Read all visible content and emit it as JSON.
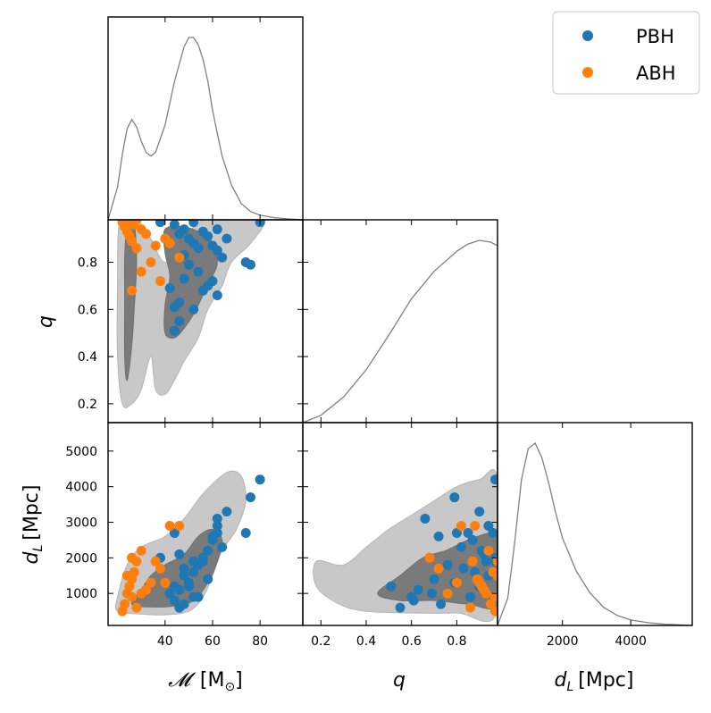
{
  "chart_data": {
    "type": "scatter",
    "kind": "corner-plot",
    "parameters": [
      "chirp_mass",
      "q",
      "d_L"
    ],
    "axis_labels": {
      "chirp_mass": {
        "symbol": "𝓜",
        "unit": "[M",
        "unit_sub": "⊙",
        "unit_close": "]"
      },
      "q": {
        "symbol": "q"
      },
      "d_L": {
        "symbol": "d",
        "sub": "L",
        "unit": "[Mpc]"
      }
    },
    "ranges": {
      "chirp_mass": [
        16,
        98
      ],
      "q": [
        0.12,
        0.98
      ],
      "d_L": [
        100,
        5800
      ]
    },
    "ticks": {
      "chirp_mass": [
        "40",
        "60",
        "80"
      ],
      "q": [
        "0.2",
        "0.4",
        "0.6",
        "0.8"
      ],
      "d_L": [
        "1000",
        "2000",
        "3000",
        "4000",
        "5000"
      ],
      "d_L_diag": [
        "2000",
        "4000"
      ]
    },
    "legend": {
      "placement": "top-right",
      "entries": [
        {
          "label": "PBH",
          "color": "#1f77b4"
        },
        {
          "label": "ABH",
          "color": "#ff7f0e"
        }
      ]
    },
    "colors": {
      "kde_line": "#808080",
      "contour_inner": "#7a7a7a",
      "contour_outer": "#c8c8c8"
    },
    "marginals": {
      "chirp_mass": {
        "x": [
          16,
          20,
          22,
          24,
          26,
          28,
          30,
          32,
          34,
          36,
          40,
          44,
          48,
          50,
          52,
          54,
          56,
          58,
          60,
          64,
          68,
          72,
          76,
          80,
          86,
          92,
          98
        ],
        "y": [
          0.0,
          0.18,
          0.36,
          0.5,
          0.55,
          0.51,
          0.43,
          0.37,
          0.35,
          0.37,
          0.52,
          0.76,
          0.95,
          1.0,
          1.0,
          0.96,
          0.88,
          0.76,
          0.6,
          0.35,
          0.19,
          0.09,
          0.045,
          0.025,
          0.012,
          0.005,
          0.0
        ]
      },
      "q": {
        "x": [
          0.12,
          0.2,
          0.3,
          0.4,
          0.5,
          0.6,
          0.7,
          0.8,
          0.85,
          0.9,
          0.95,
          0.98
        ],
        "y": [
          0.0,
          0.04,
          0.14,
          0.29,
          0.48,
          0.68,
          0.83,
          0.94,
          0.98,
          1.0,
          0.99,
          0.97
        ]
      },
      "d_L": {
        "x": [
          100,
          400,
          600,
          800,
          1000,
          1200,
          1400,
          1600,
          1800,
          2000,
          2400,
          2800,
          3200,
          3600,
          4000,
          4500,
          5000,
          5800
        ],
        "y": [
          0.0,
          0.15,
          0.45,
          0.8,
          0.97,
          1.0,
          0.92,
          0.78,
          0.62,
          0.48,
          0.3,
          0.18,
          0.1,
          0.055,
          0.03,
          0.015,
          0.007,
          0.0
        ]
      }
    },
    "contours": {
      "q_vs_chirp_mass": {
        "outer": [
          [
            [
              21,
              0.98
            ],
            [
              28,
              0.98
            ],
            [
              34,
              0.9
            ],
            [
              40,
              0.8
            ],
            [
              48,
              0.9
            ],
            [
              56,
              0.98
            ],
            [
              70,
              0.98
            ],
            [
              82,
              0.98
            ],
            [
              76,
              0.88
            ],
            [
              68,
              0.8
            ],
            [
              64,
              0.7
            ],
            [
              58,
              0.6
            ],
            [
              54,
              0.48
            ],
            [
              48,
              0.38
            ],
            [
              44,
              0.3
            ],
            [
              40,
              0.24
            ],
            [
              36,
              0.26
            ],
            [
              34,
              0.4
            ],
            [
              30,
              0.26
            ],
            [
              26,
              0.2
            ],
            [
              22,
              0.2
            ],
            [
              20,
              0.4
            ],
            [
              20,
              0.7
            ]
          ]
        ],
        "inner": [
          [
            [
              24,
              0.95
            ],
            [
              27,
              0.96
            ],
            [
              28,
              0.8
            ],
            [
              27,
              0.6
            ],
            [
              26,
              0.45
            ],
            [
              24,
              0.3
            ],
            [
              23,
              0.4
            ],
            [
              23,
              0.65
            ],
            [
              23,
              0.82
            ]
          ],
          [
            [
              40,
              0.94
            ],
            [
              48,
              0.95
            ],
            [
              56,
              0.92
            ],
            [
              60,
              0.88
            ],
            [
              62,
              0.8
            ],
            [
              60,
              0.74
            ],
            [
              56,
              0.66
            ],
            [
              52,
              0.58
            ],
            [
              48,
              0.52
            ],
            [
              44,
              0.48
            ],
            [
              40,
              0.5
            ],
            [
              40,
              0.62
            ],
            [
              42,
              0.74
            ],
            [
              40,
              0.84
            ]
          ]
        ]
      },
      "d_L_vs_chirp_mass": {
        "outer": [
          [
            [
              20,
              500
            ],
            [
              20,
              900
            ],
            [
              24,
              1800
            ],
            [
              30,
              2300
            ],
            [
              40,
              2600
            ],
            [
              48,
              3100
            ],
            [
              56,
              3800
            ],
            [
              66,
              4400
            ],
            [
              72,
              4300
            ],
            [
              74,
              3600
            ],
            [
              70,
              2800
            ],
            [
              64,
              2200
            ],
            [
              60,
              1500
            ],
            [
              56,
              900
            ],
            [
              50,
              500
            ],
            [
              40,
              400
            ],
            [
              30,
              420
            ]
          ]
        ],
        "inner": [
          [
            [
              26,
              700
            ],
            [
              30,
              1100
            ],
            [
              34,
              1500
            ],
            [
              40,
              1800
            ],
            [
              48,
              2100
            ],
            [
              54,
              2600
            ],
            [
              60,
              2800
            ],
            [
              64,
              2500
            ],
            [
              62,
              1900
            ],
            [
              58,
              1300
            ],
            [
              52,
              800
            ],
            [
              44,
              650
            ],
            [
              34,
              620
            ]
          ]
        ]
      },
      "d_L_vs_q": {
        "outer": [
          [
            [
              0.18,
              1900
            ],
            [
              0.3,
              1800
            ],
            [
              0.4,
              2300
            ],
            [
              0.5,
              2800
            ],
            [
              0.6,
              3200
            ],
            [
              0.7,
              3600
            ],
            [
              0.8,
              4000
            ],
            [
              0.9,
              4200
            ],
            [
              0.98,
              4200
            ],
            [
              0.98,
              500
            ],
            [
              0.8,
              450
            ],
            [
              0.6,
              450
            ],
            [
              0.4,
              500
            ],
            [
              0.28,
              700
            ],
            [
              0.18,
              1200
            ]
          ]
        ],
        "inner": [
          [
            [
              0.45,
              1000
            ],
            [
              0.55,
              1500
            ],
            [
              0.65,
              2000
            ],
            [
              0.75,
              2200
            ],
            [
              0.85,
              2500
            ],
            [
              0.95,
              2700
            ],
            [
              0.98,
              2500
            ],
            [
              0.98,
              700
            ],
            [
              0.85,
              700
            ],
            [
              0.7,
              800
            ],
            [
              0.55,
              800
            ]
          ]
        ]
      }
    },
    "samples": {
      "PBH": [
        {
          "M": 38,
          "q": 0.97,
          "d": 2000
        },
        {
          "M": 44,
          "q": 0.96,
          "d": 2700
        },
        {
          "M": 46,
          "q": 0.92,
          "d": 2100
        },
        {
          "M": 48,
          "q": 0.94,
          "d": 1500
        },
        {
          "M": 50,
          "q": 0.9,
          "d": 1200
        },
        {
          "M": 52,
          "q": 0.88,
          "d": 1600
        },
        {
          "M": 54,
          "q": 0.86,
          "d": 900
        },
        {
          "M": 56,
          "q": 0.93,
          "d": 1900
        },
        {
          "M": 58,
          "q": 0.91,
          "d": 2200
        },
        {
          "M": 60,
          "q": 0.87,
          "d": 2500
        },
        {
          "M": 62,
          "q": 0.85,
          "d": 2700
        },
        {
          "M": 64,
          "q": 0.82,
          "d": 2300
        },
        {
          "M": 66,
          "q": 0.9,
          "d": 3300
        },
        {
          "M": 80,
          "q": 0.97,
          "d": 4200
        },
        {
          "M": 76,
          "q": 0.79,
          "d": 3700
        },
        {
          "M": 74,
          "q": 0.8,
          "d": 2700
        },
        {
          "M": 42,
          "q": 0.69,
          "d": 1000
        },
        {
          "M": 44,
          "q": 0.61,
          "d": 800
        },
        {
          "M": 46,
          "q": 0.63,
          "d": 1100
        },
        {
          "M": 48,
          "q": 0.73,
          "d": 700
        },
        {
          "M": 50,
          "q": 0.79,
          "d": 1300
        },
        {
          "M": 52,
          "q": 0.6,
          "d": 900
        },
        {
          "M": 54,
          "q": 0.76,
          "d": 1800
        },
        {
          "M": 56,
          "q": 0.68,
          "d": 2000
        },
        {
          "M": 58,
          "q": 0.7,
          "d": 1400
        },
        {
          "M": 60,
          "q": 0.72,
          "d": 2600
        },
        {
          "M": 62,
          "q": 0.66,
          "d": 3100
        },
        {
          "M": 44,
          "q": 0.51,
          "d": 1200
        },
        {
          "M": 62,
          "q": 0.94,
          "d": 2900
        },
        {
          "M": 48,
          "q": 0.83,
          "d": 1700
        },
        {
          "M": 46,
          "q": 0.55,
          "d": 600
        },
        {
          "M": 52,
          "q": 0.97,
          "d": 1900
        }
      ],
      "ABH": [
        {
          "M": 22,
          "q": 0.97,
          "d": 500
        },
        {
          "M": 23,
          "q": 0.95,
          "d": 700
        },
        {
          "M": 24,
          "q": 0.93,
          "d": 1000
        },
        {
          "M": 25,
          "q": 0.91,
          "d": 1200
        },
        {
          "M": 26,
          "q": 0.89,
          "d": 1400
        },
        {
          "M": 27,
          "q": 0.96,
          "d": 1600
        },
        {
          "M": 28,
          "q": 0.98,
          "d": 1900
        },
        {
          "M": 30,
          "q": 0.94,
          "d": 2200
        },
        {
          "M": 32,
          "q": 0.92,
          "d": 1100
        },
        {
          "M": 34,
          "q": 0.8,
          "d": 1300
        },
        {
          "M": 36,
          "q": 0.87,
          "d": 1900
        },
        {
          "M": 38,
          "q": 0.72,
          "d": 1700
        },
        {
          "M": 42,
          "q": 0.88,
          "d": 2900
        },
        {
          "M": 46,
          "q": 0.82,
          "d": 2900
        },
        {
          "M": 26,
          "q": 0.68,
          "d": 2000
        },
        {
          "M": 30,
          "q": 0.76,
          "d": 1000
        },
        {
          "M": 40,
          "q": 0.9,
          "d": 1300
        },
        {
          "M": 24,
          "q": 0.98,
          "d": 1500
        },
        {
          "M": 26,
          "q": 0.97,
          "d": 900
        },
        {
          "M": 28,
          "q": 0.86,
          "d": 600
        }
      ]
    }
  }
}
